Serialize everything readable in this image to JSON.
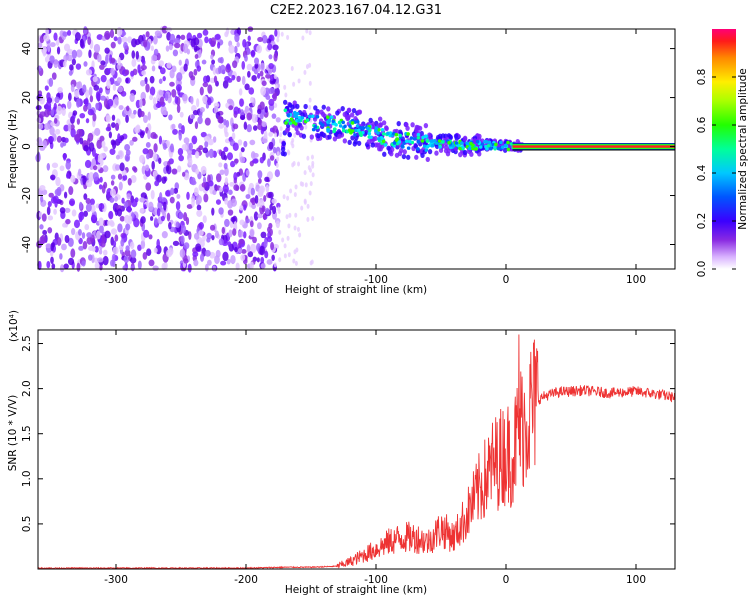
{
  "title": "C2E2.2023.167.04.12.G31",
  "chart_data": [
    {
      "type": "heatmap",
      "xlabel": "Height of straight line (km)",
      "ylabel": "Frequency (Hz)",
      "xlim": [
        -360,
        130
      ],
      "ylim": [
        -50,
        48
      ],
      "xticks": [
        -300,
        -200,
        -100,
        0,
        100
      ],
      "yticks": [
        40,
        20,
        0,
        -20,
        -40
      ],
      "colorbar": {
        "label": "Normalized spectral amplitude",
        "range": [
          0,
          1
        ],
        "ticks": [
          0.0,
          0.2,
          0.4,
          0.6,
          0.8
        ]
      },
      "signal_band": [
        {
          "x": -170,
          "y": 12
        },
        {
          "x": -150,
          "y": 10
        },
        {
          "x": -130,
          "y": 9
        },
        {
          "x": -110,
          "y": 7
        },
        {
          "x": -90,
          "y": 3
        },
        {
          "x": -70,
          "y": 2
        },
        {
          "x": -50,
          "y": 1
        },
        {
          "x": -30,
          "y": 0.5
        },
        {
          "x": -10,
          "y": 0.5
        },
        {
          "x": 10,
          "y": 0
        },
        {
          "x": 130,
          "y": 0
        }
      ]
    },
    {
      "type": "line",
      "xlabel": "Height of straight line (km)",
      "ylabel": "SNR (10 * V/V)",
      "y_multiplier": "(x10⁴)",
      "xlim": [
        -360,
        130
      ],
      "ylim": [
        0,
        2.65
      ],
      "xticks": [
        -300,
        -200,
        -100,
        0,
        100
      ],
      "yticks": [
        0.5,
        1.0,
        1.5,
        2.0,
        2.5
      ],
      "color": "#ee3333",
      "x": [
        -360,
        -300,
        -250,
        -200,
        -170,
        -150,
        -130,
        -120,
        -110,
        -100,
        -90,
        -80,
        -70,
        -60,
        -50,
        -40,
        -30,
        -20,
        -10,
        0,
        5,
        10,
        15,
        20,
        25,
        30,
        40,
        60,
        80,
        100,
        120,
        130
      ],
      "y": [
        0.01,
        0.01,
        0.01,
        0.01,
        0.02,
        0.02,
        0.03,
        0.08,
        0.15,
        0.22,
        0.3,
        0.35,
        0.35,
        0.3,
        0.45,
        0.35,
        0.6,
        0.9,
        1.15,
        1.3,
        1.25,
        1.55,
        1.65,
        1.8,
        1.88,
        1.92,
        1.96,
        1.98,
        1.95,
        1.97,
        1.93,
        1.9
      ],
      "spikes": [
        {
          "x": 10,
          "y": 2.6
        }
      ]
    }
  ]
}
